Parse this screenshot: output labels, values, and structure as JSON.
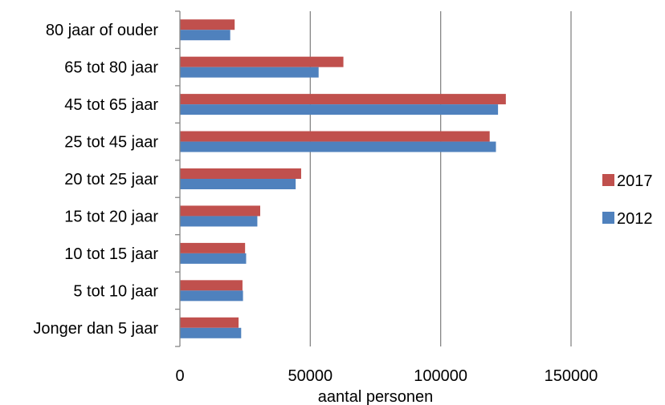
{
  "chart_data": {
    "type": "bar",
    "orientation": "horizontal",
    "categories": [
      "Jonger dan 5 jaar",
      "5 tot 10 jaar",
      "10 tot 15 jaar",
      "15 tot 20 jaar",
      "20 tot 25 jaar",
      "25 tot 45 jaar",
      "45 tot 65 jaar",
      "65 tot 80 jaar",
      "80 jaar of ouder"
    ],
    "series": [
      {
        "name": "2012",
        "color": "#4F81BD",
        "values": [
          23500,
          24200,
          25400,
          29700,
          44400,
          121200,
          122000,
          53200,
          19300
        ]
      },
      {
        "name": "2017",
        "color": "#C0504D",
        "values": [
          22500,
          24000,
          25000,
          30800,
          46500,
          118800,
          125000,
          62700,
          21000
        ]
      }
    ],
    "title": "",
    "xlabel": "aantal personen",
    "ylabel": "",
    "xlim": [
      0,
      150000
    ],
    "xticks": [
      0,
      50000,
      100000,
      150000
    ],
    "xtick_labels": [
      "0",
      "50000",
      "100000",
      "150000"
    ],
    "grid": "vertical major gridlines",
    "legend": {
      "placement": "right",
      "order": [
        "2017",
        "2012"
      ]
    }
  }
}
